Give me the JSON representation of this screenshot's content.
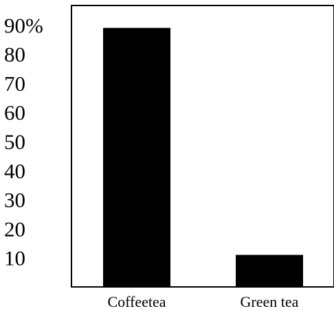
{
  "chart_data": {
    "type": "bar",
    "categories": [
      "Coffeetea",
      "Green tea"
    ],
    "values": [
      89,
      11
    ],
    "ylim": [
      0,
      100
    ],
    "yticks": [
      10,
      20,
      30,
      40,
      50,
      60,
      70,
      80,
      90
    ],
    "ytick_labels": [
      "10",
      "20",
      "30",
      "40",
      "50",
      "60",
      "70",
      "80",
      "90%"
    ],
    "bar_color": "#000000",
    "grid": false,
    "legend": "none"
  }
}
